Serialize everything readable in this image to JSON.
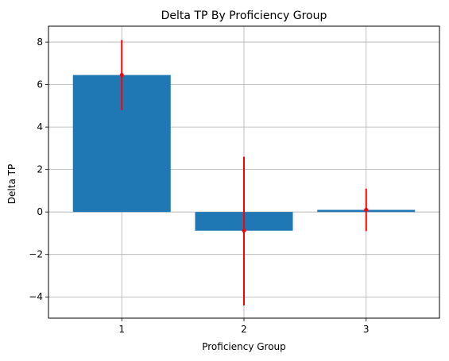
{
  "chart_data": {
    "type": "bar",
    "title": "Delta TP By Proficiency Group",
    "xlabel": "Proficiency Group",
    "ylabel": "Delta TP",
    "categories": [
      "1",
      "2",
      "3"
    ],
    "values": [
      6.45,
      -0.88,
      0.1
    ],
    "error_low": [
      4.8,
      -4.4,
      -0.9
    ],
    "error_high": [
      8.1,
      2.6,
      1.1
    ],
    "ylim": [
      -5.0,
      8.75
    ],
    "yticks": [
      -4,
      -2,
      0,
      2,
      4,
      6,
      8
    ],
    "grid": true,
    "colors": {
      "bar": "#1f77b4",
      "error": "#ff0000",
      "grid": "#b0b0b0"
    }
  }
}
